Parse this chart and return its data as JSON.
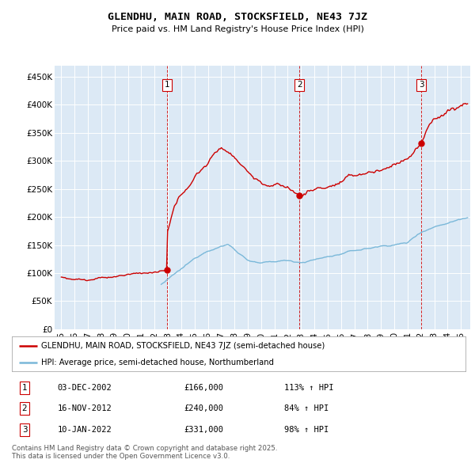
{
  "title": "GLENDHU, MAIN ROAD, STOCKSFIELD, NE43 7JZ",
  "subtitle": "Price paid vs. HM Land Registry's House Price Index (HPI)",
  "background_color": "#dce9f5",
  "red_line_color": "#cc0000",
  "blue_line_color": "#7ab8d9",
  "grid_color": "#ffffff",
  "purchase_dates": [
    2002.92,
    2012.88,
    2022.03
  ],
  "purchase_prices": [
    166000,
    240000,
    331000
  ],
  "purchase_labels": [
    "1",
    "2",
    "3"
  ],
  "vline_color": "#cc0000",
  "label_box_edge": "#cc0000",
  "legend_entries": [
    "GLENDHU, MAIN ROAD, STOCKSFIELD, NE43 7JZ (semi-detached house)",
    "HPI: Average price, semi-detached house, Northumberland"
  ],
  "table_entries": [
    [
      "1",
      "03-DEC-2002",
      "£166,000",
      "113% ↑ HPI"
    ],
    [
      "2",
      "16-NOV-2012",
      "£240,000",
      "84% ↑ HPI"
    ],
    [
      "3",
      "10-JAN-2022",
      "£331,000",
      "98% ↑ HPI"
    ]
  ],
  "footer": "Contains HM Land Registry data © Crown copyright and database right 2025.\nThis data is licensed under the Open Government Licence v3.0.",
  "ylim": [
    0,
    470000
  ],
  "xlim_start": 1994.5,
  "xlim_end": 2025.7,
  "yticks": [
    0,
    50000,
    100000,
    150000,
    200000,
    250000,
    300000,
    350000,
    400000,
    450000
  ],
  "ytick_labels": [
    "£0",
    "£50K",
    "£100K",
    "£150K",
    "£200K",
    "£250K",
    "£300K",
    "£350K",
    "£400K",
    "£450K"
  ],
  "xticks": [
    1995,
    1996,
    1997,
    1998,
    1999,
    2000,
    2001,
    2002,
    2003,
    2004,
    2005,
    2006,
    2007,
    2008,
    2009,
    2010,
    2011,
    2012,
    2013,
    2014,
    2015,
    2016,
    2017,
    2018,
    2019,
    2020,
    2021,
    2022,
    2023,
    2024,
    2025
  ]
}
